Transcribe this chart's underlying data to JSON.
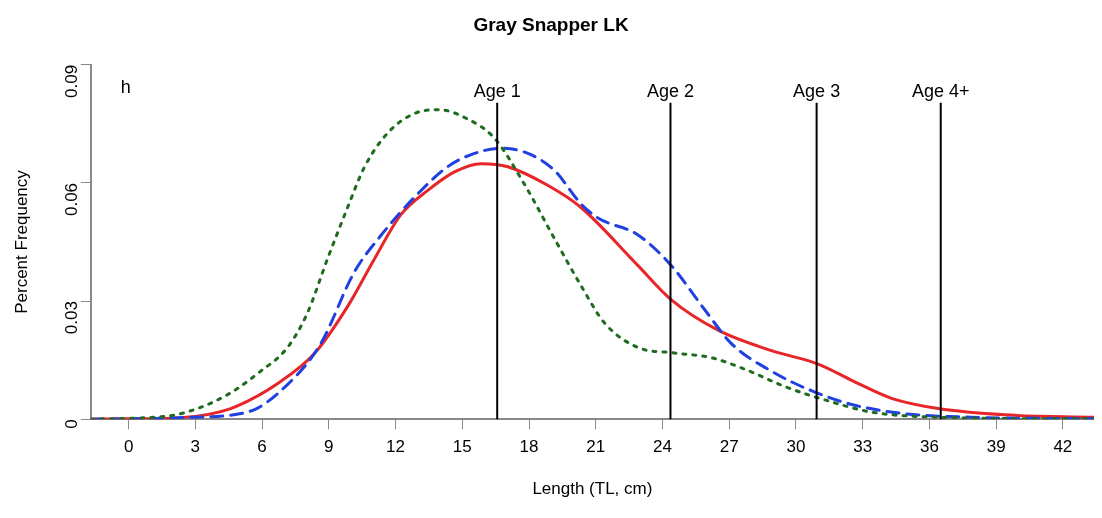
{
  "chart_data": {
    "type": "line",
    "title": "Gray Snapper LK",
    "xlabel": "Length (TL, cm)",
    "ylabel": "Percent Frequency",
    "xlim": [
      -1.7,
      43.4
    ],
    "xticks": [
      0,
      3,
      6,
      9,
      12,
      15,
      18,
      21,
      24,
      27,
      30,
      33,
      36,
      39,
      42
    ],
    "ylim": [
      0,
      0.09
    ],
    "yticks": [
      0,
      0.03,
      0.06,
      0.09
    ],
    "grid": false,
    "legend": false,
    "marker": "none",
    "annotations": [
      "h"
    ],
    "ref_lines": [
      {
        "axis": "x",
        "value": 16.57,
        "label": "Age 1",
        "color": "#000000"
      },
      {
        "axis": "x",
        "value": 24.36,
        "label": "Age 2",
        "color": "#000000"
      },
      {
        "axis": "x",
        "value": 30.93,
        "label": "Age 3",
        "color": "#000000"
      },
      {
        "axis": "x",
        "value": 36.51,
        "label": "Age 4+",
        "color": "#000000"
      }
    ],
    "series": [
      {
        "color": "#1f6b1f",
        "line_style": "dotted",
        "x": [
          -1.7,
          0,
          2.34,
          4.44,
          5.94,
          7.14,
          8.04,
          8.94,
          9.84,
          10.6,
          11.65,
          12.84,
          13.96,
          15.25,
          16.44,
          17.79,
          19.14,
          20.35,
          21.4,
          22.9,
          24.4,
          26.2,
          27.7,
          29.5,
          31.3,
          33.4,
          36.4,
          42.4,
          43.4
        ],
        "values": [
          0,
          0.0002,
          0.0014,
          0.0062,
          0.0122,
          0.0182,
          0.027,
          0.0407,
          0.0537,
          0.064,
          0.0727,
          0.0776,
          0.0786,
          0.0762,
          0.0714,
          0.0597,
          0.0459,
          0.0338,
          0.0244,
          0.0182,
          0.0169,
          0.0156,
          0.0127,
          0.0083,
          0.0049,
          0.0018,
          0.0005,
          0.0001,
          0.0001
        ]
      },
      {
        "color": "#2040e0",
        "line_style": "dashed",
        "x": [
          -1.7,
          0,
          2.34,
          5.34,
          7.14,
          8.64,
          10.14,
          11.35,
          12.84,
          14.34,
          15.55,
          16.75,
          17.95,
          19.14,
          20.35,
          21.1,
          22.9,
          24.4,
          25.9,
          27.1,
          28.9,
          30.8,
          32.6,
          34.9,
          37.9,
          42.4,
          43.4
        ],
        "values": [
          0,
          0.0001,
          0.0004,
          0.0018,
          0.0088,
          0.0192,
          0.0373,
          0.0467,
          0.0563,
          0.0641,
          0.0675,
          0.0688,
          0.0675,
          0.0632,
          0.0546,
          0.0511,
          0.0468,
          0.039,
          0.0278,
          0.0192,
          0.0122,
          0.007,
          0.0036,
          0.0014,
          0.0005,
          0.0002,
          0.0002
        ]
      },
      {
        "color": "#e8262a",
        "line_style": "solid",
        "x": [
          -1.7,
          0,
          2.34,
          4.59,
          6.84,
          8.34,
          9.84,
          11.05,
          12.25,
          13.45,
          14.65,
          15.85,
          17.05,
          18.84,
          20.35,
          22.9,
          24.4,
          26.5,
          28.9,
          31.0,
          32.6,
          34.3,
          36.4,
          39.4,
          43.4
        ],
        "values": [
          0,
          0.0001,
          0.0004,
          0.0027,
          0.0096,
          0.0166,
          0.0286,
          0.0407,
          0.052,
          0.0581,
          0.0628,
          0.0649,
          0.0641,
          0.0594,
          0.0537,
          0.039,
          0.0303,
          0.0226,
          0.0174,
          0.014,
          0.0096,
          0.0053,
          0.0027,
          0.0011,
          0.0005
        ]
      }
    ]
  }
}
